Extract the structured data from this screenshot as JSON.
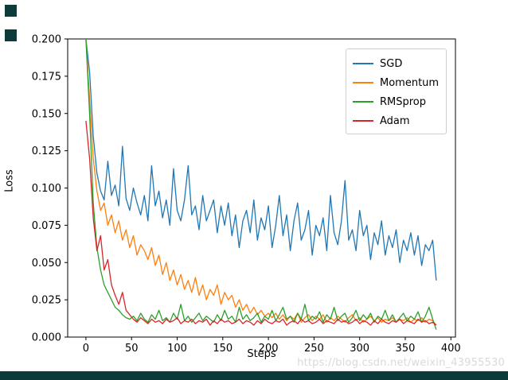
{
  "page": {
    "watermark": "https://blog.csdn.net/weixin_43955530",
    "frame_color": "#0d3b3a",
    "background": "#ffffff"
  },
  "chart_data": {
    "type": "line",
    "title": "",
    "xlabel": "Steps",
    "ylabel": "Loss",
    "xlim": [
      -20,
      405
    ],
    "ylim": [
      0,
      0.2
    ],
    "xticks": [
      0,
      50,
      100,
      150,
      200,
      250,
      300,
      350,
      400
    ],
    "yticks": [
      0.0,
      0.025,
      0.05,
      0.075,
      0.1,
      0.125,
      0.15,
      0.175,
      0.2
    ],
    "grid": false,
    "legend_position": "upper right",
    "x_step": 4,
    "series": [
      {
        "name": "SGD",
        "color": "#1f77b4",
        "values": [
          0.2,
          0.178,
          0.135,
          0.11,
          0.098,
          0.092,
          0.118,
          0.095,
          0.102,
          0.088,
          0.128,
          0.093,
          0.085,
          0.1,
          0.09,
          0.082,
          0.095,
          0.078,
          0.115,
          0.088,
          0.098,
          0.08,
          0.092,
          0.075,
          0.113,
          0.085,
          0.078,
          0.092,
          0.115,
          0.082,
          0.088,
          0.072,
          0.095,
          0.078,
          0.085,
          0.092,
          0.07,
          0.088,
          0.075,
          0.09,
          0.068,
          0.082,
          0.06,
          0.078,
          0.085,
          0.07,
          0.092,
          0.065,
          0.08,
          0.072,
          0.088,
          0.06,
          0.075,
          0.095,
          0.068,
          0.082,
          0.058,
          0.078,
          0.09,
          0.065,
          0.072,
          0.085,
          0.055,
          0.075,
          0.068,
          0.08,
          0.058,
          0.095,
          0.07,
          0.062,
          0.078,
          0.105,
          0.065,
          0.072,
          0.058,
          0.085,
          0.068,
          0.075,
          0.052,
          0.07,
          0.062,
          0.078,
          0.055,
          0.068,
          0.06,
          0.072,
          0.05,
          0.065,
          0.058,
          0.07,
          0.055,
          0.068,
          0.048,
          0.062,
          0.058,
          0.065,
          0.038
        ]
      },
      {
        "name": "Momentum",
        "color": "#ff7f0e",
        "values": [
          0.2,
          0.16,
          0.12,
          0.098,
          0.085,
          0.09,
          0.075,
          0.082,
          0.07,
          0.078,
          0.065,
          0.072,
          0.06,
          0.068,
          0.055,
          0.062,
          0.058,
          0.052,
          0.06,
          0.048,
          0.055,
          0.042,
          0.05,
          0.038,
          0.045,
          0.035,
          0.042,
          0.032,
          0.038,
          0.03,
          0.04,
          0.028,
          0.035,
          0.025,
          0.032,
          0.028,
          0.035,
          0.022,
          0.03,
          0.025,
          0.028,
          0.02,
          0.025,
          0.018,
          0.022,
          0.016,
          0.02,
          0.015,
          0.018,
          0.014,
          0.016,
          0.013,
          0.016,
          0.012,
          0.015,
          0.011,
          0.014,
          0.012,
          0.016,
          0.01,
          0.013,
          0.015,
          0.011,
          0.014,
          0.012,
          0.015,
          0.01,
          0.013,
          0.011,
          0.014,
          0.012,
          0.01,
          0.013,
          0.015,
          0.011,
          0.013,
          0.01,
          0.012,
          0.014,
          0.011,
          0.013,
          0.01,
          0.012,
          0.011,
          0.013,
          0.01,
          0.012,
          0.011,
          0.013,
          0.01,
          0.012,
          0.011,
          0.013,
          0.01,
          0.012,
          0.011,
          0.008
        ]
      },
      {
        "name": "RMSprop",
        "color": "#2ca02c",
        "values": [
          0.2,
          0.15,
          0.09,
          0.06,
          0.045,
          0.035,
          0.03,
          0.025,
          0.02,
          0.018,
          0.015,
          0.013,
          0.012,
          0.014,
          0.011,
          0.016,
          0.012,
          0.01,
          0.015,
          0.012,
          0.018,
          0.011,
          0.013,
          0.01,
          0.016,
          0.012,
          0.022,
          0.011,
          0.014,
          0.01,
          0.013,
          0.016,
          0.011,
          0.014,
          0.012,
          0.01,
          0.015,
          0.011,
          0.018,
          0.012,
          0.014,
          0.01,
          0.02,
          0.012,
          0.015,
          0.011,
          0.013,
          0.016,
          0.01,
          0.014,
          0.012,
          0.018,
          0.011,
          0.015,
          0.02,
          0.012,
          0.014,
          0.01,
          0.016,
          0.012,
          0.022,
          0.011,
          0.014,
          0.012,
          0.017,
          0.01,
          0.015,
          0.012,
          0.02,
          0.011,
          0.014,
          0.016,
          0.01,
          0.013,
          0.018,
          0.011,
          0.015,
          0.012,
          0.016,
          0.01,
          0.014,
          0.012,
          0.018,
          0.011,
          0.015,
          0.01,
          0.013,
          0.016,
          0.011,
          0.014,
          0.012,
          0.017,
          0.01,
          0.014,
          0.02,
          0.012,
          0.005
        ]
      },
      {
        "name": "Adam",
        "color": "#d62728",
        "values": [
          0.145,
          0.12,
          0.08,
          0.058,
          0.068,
          0.045,
          0.052,
          0.035,
          0.028,
          0.022,
          0.03,
          0.018,
          0.015,
          0.012,
          0.01,
          0.013,
          0.011,
          0.009,
          0.012,
          0.01,
          0.011,
          0.009,
          0.012,
          0.01,
          0.011,
          0.013,
          0.009,
          0.011,
          0.01,
          0.012,
          0.009,
          0.011,
          0.01,
          0.012,
          0.008,
          0.011,
          0.009,
          0.012,
          0.01,
          0.011,
          0.009,
          0.01,
          0.012,
          0.009,
          0.011,
          0.01,
          0.008,
          0.011,
          0.009,
          0.012,
          0.01,
          0.009,
          0.011,
          0.01,
          0.012,
          0.008,
          0.01,
          0.011,
          0.009,
          0.012,
          0.01,
          0.011,
          0.009,
          0.01,
          0.012,
          0.009,
          0.011,
          0.01,
          0.009,
          0.012,
          0.01,
          0.011,
          0.009,
          0.01,
          0.012,
          0.009,
          0.011,
          0.01,
          0.008,
          0.011,
          0.009,
          0.012,
          0.01,
          0.009,
          0.011,
          0.01,
          0.012,
          0.009,
          0.011,
          0.01,
          0.009,
          0.012,
          0.01,
          0.011,
          0.009,
          0.01,
          0.008
        ]
      }
    ]
  }
}
